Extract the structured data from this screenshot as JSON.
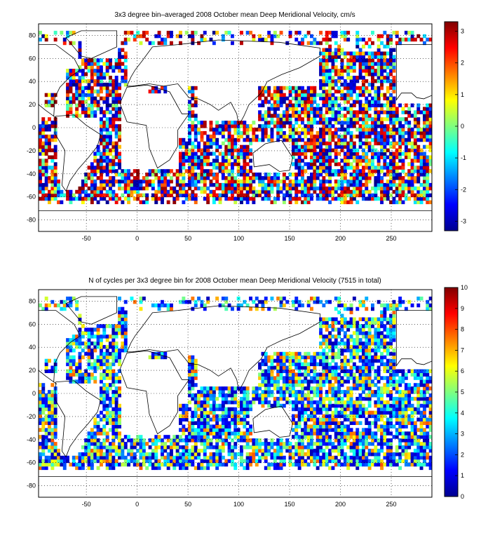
{
  "chart_data": [
    {
      "type": "heatmap",
      "title": "3x3 degree bin–averaged 2008 October mean Deep Meridional Velocity, cm/s",
      "xlabel": "",
      "ylabel": "",
      "xlim": [
        -97,
        290
      ],
      "ylim": [
        -90,
        90
      ],
      "x_ticks": [
        -50,
        0,
        50,
        100,
        150,
        200,
        250
      ],
      "y_ticks": [
        -80,
        -60,
        -40,
        -20,
        0,
        20,
        40,
        60,
        80
      ],
      "grid": true,
      "colormap": "jet",
      "colorbar": {
        "min": -3.3,
        "max": 3.3,
        "ticks": [
          -3,
          -2,
          -1,
          0,
          1,
          2,
          3
        ]
      },
      "bin_size_deg": 3
    },
    {
      "type": "heatmap",
      "title": "N of cycles per 3x3 degree bin for 2008 October mean Deep Meridional Velocity (7515 in total)",
      "xlabel": "",
      "ylabel": "",
      "xlim": [
        -97,
        290
      ],
      "ylim": [
        -90,
        90
      ],
      "x_ticks": [
        -50,
        0,
        50,
        100,
        150,
        200,
        250
      ],
      "y_ticks": [
        -80,
        -60,
        -40,
        -20,
        0,
        20,
        40,
        60,
        80
      ],
      "grid": true,
      "colormap": "jet",
      "colorbar": {
        "min": 0,
        "max": 10,
        "ticks": [
          0,
          1,
          2,
          3,
          4,
          5,
          6,
          7,
          8,
          9,
          10
        ]
      },
      "bin_size_deg": 3
    }
  ]
}
